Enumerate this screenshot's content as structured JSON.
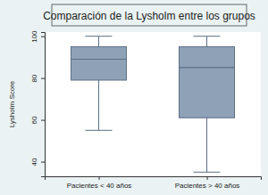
{
  "chart_data": {
    "type": "box",
    "title": "Comparación de la Lysholm entre los grupos",
    "y_label": "Lysholm Score",
    "categories": [
      "Pacientes < 40 años",
      "Pacientes > 40 años"
    ],
    "series": [
      {
        "color": "#8fa1b7",
        "whisker_low": [
          55,
          35
        ],
        "q1": [
          79,
          61
        ],
        "median": [
          89,
          85
        ],
        "q3": [
          95,
          95
        ],
        "whisker_high": [
          100,
          100
        ]
      }
    ],
    "ylim": [
      33,
      102
    ],
    "yticks": [
      40,
      60,
      80,
      100
    ],
    "grid": false
  }
}
